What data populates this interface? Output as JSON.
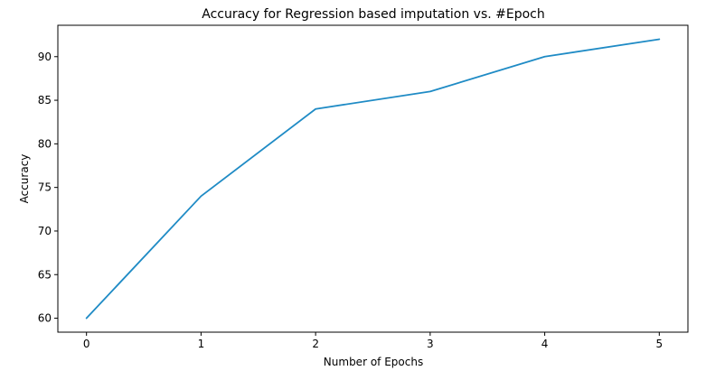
{
  "chart_data": {
    "type": "line",
    "title": "Accuracy for Regression based imputation vs. #Epoch",
    "xlabel": "Number of Epochs",
    "ylabel": "Accuracy",
    "x": [
      0,
      1,
      2,
      3,
      4,
      5
    ],
    "series": [
      {
        "values": [
          60,
          74,
          84,
          86,
          90,
          92
        ]
      }
    ],
    "xlim": [
      -0.25,
      5.25
    ],
    "ylim": [
      58.4,
      93.6
    ],
    "xticks": [
      "0",
      "1",
      "2",
      "3",
      "4",
      "5"
    ],
    "yticks": [
      "60",
      "65",
      "70",
      "75",
      "80",
      "85",
      "90"
    ],
    "grid": false,
    "line_color": "#1f8bc5"
  }
}
